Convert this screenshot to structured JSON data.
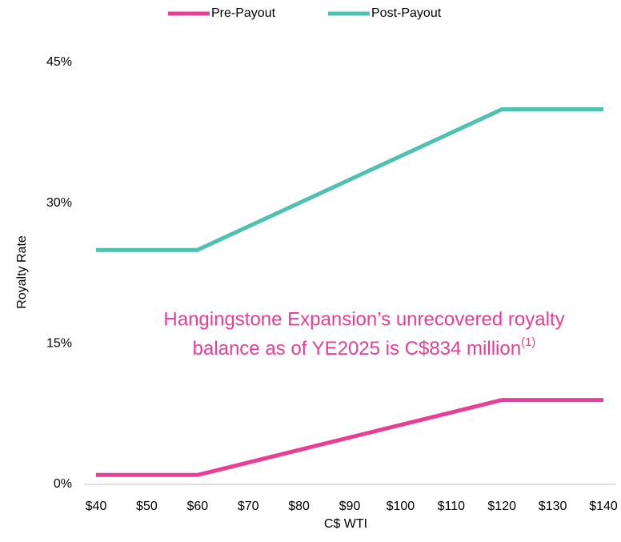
{
  "chart_data": {
    "type": "line",
    "x_label": "C$ WTI",
    "y_label": "Royalty Rate",
    "x": [
      40,
      60,
      120,
      140
    ],
    "series": [
      {
        "name": "Pre-Payout",
        "color": "#e83e96",
        "values": [
          1,
          1,
          9,
          9
        ]
      },
      {
        "name": "Post-Payout",
        "color": "#4fc1b0",
        "values": [
          25,
          25,
          40,
          40
        ]
      }
    ],
    "xlim": [
      40,
      140
    ],
    "xticks": [
      {
        "value": 40,
        "label": "$40"
      },
      {
        "value": 50,
        "label": "$50"
      },
      {
        "value": 60,
        "label": "$60"
      },
      {
        "value": 70,
        "label": "$70"
      },
      {
        "value": 80,
        "label": "$80"
      },
      {
        "value": 90,
        "label": "$90"
      },
      {
        "value": 100,
        "label": "$100"
      },
      {
        "value": 110,
        "label": "$110"
      },
      {
        "value": 120,
        "label": "$120"
      },
      {
        "value": 130,
        "label": "$130"
      },
      {
        "value": 140,
        "label": "$140"
      }
    ],
    "ylim": [
      0,
      45
    ],
    "yticks": [
      {
        "value": 0,
        "label": "0%"
      },
      {
        "value": 15,
        "label": "15%"
      },
      {
        "value": 30,
        "label": "30%"
      },
      {
        "value": 45,
        "label": "45%"
      }
    ],
    "grid": false,
    "legend": "top",
    "annotation": {
      "lines": [
        "Hangingstone Expansion’s unrecovered royalty",
        "balance as of YE2025 is C$834 million"
      ],
      "note": "(1)",
      "color": "#e83e96"
    }
  }
}
